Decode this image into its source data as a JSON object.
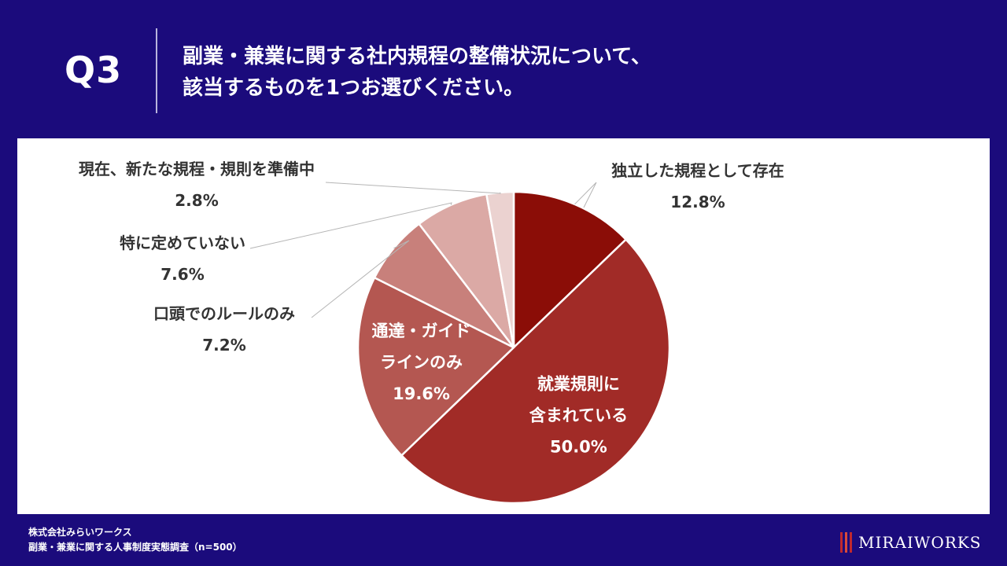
{
  "header": {
    "question_number": "Q3",
    "question_line1": "副業・兼業に関する社内規程の整備状況について、",
    "question_line2": "該当するものを1つお選びください。"
  },
  "footer": {
    "company": "株式会社みらいワークス",
    "survey": "副業・兼業に関する人事制度実態調査（n=500）"
  },
  "logo": {
    "text": "MIRAIWORKS"
  },
  "colors": {
    "background": "#1b0b7c",
    "panel": "#ffffff",
    "slices": [
      "#8b0d07",
      "#a12b27",
      "#b45751",
      "#c8807b",
      "#dba9a5",
      "#ebd2d0"
    ]
  },
  "chart_data": {
    "type": "pie",
    "start_angle_deg": 0,
    "direction": "clockwise",
    "slices": [
      {
        "label_lines": [
          "独立した規程として存在"
        ],
        "value": 12.8,
        "value_label": "12.8%",
        "label_position": "outside"
      },
      {
        "label_lines": [
          "就業規則に",
          "含まれている"
        ],
        "value": 50.0,
        "value_label": "50.0%",
        "label_position": "inside"
      },
      {
        "label_lines": [
          "通達・ガイド",
          "ラインのみ"
        ],
        "value": 19.6,
        "value_label": "19.6%",
        "label_position": "inside"
      },
      {
        "label_lines": [
          "口頭でのルールのみ"
        ],
        "value": 7.2,
        "value_label": "7.2%",
        "label_position": "outside"
      },
      {
        "label_lines": [
          "特に定めていない"
        ],
        "value": 7.6,
        "value_label": "7.6%",
        "label_position": "outside"
      },
      {
        "label_lines": [
          "現在、新たな規程・規則を準備中"
        ],
        "value": 2.8,
        "value_label": "2.8%",
        "label_position": "outside"
      }
    ]
  }
}
